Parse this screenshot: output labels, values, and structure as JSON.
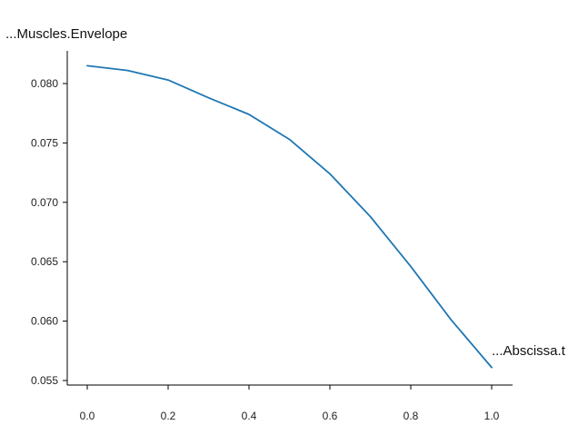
{
  "chart_data": {
    "type": "line",
    "title": "",
    "xlabel": "...Abscissa.t",
    "ylabel": "...Muscles.Envelope",
    "xlim": [
      0.0,
      1.0
    ],
    "ylim": [
      0.0555,
      0.0828
    ],
    "x_ticks": [
      "0.0",
      "0.2",
      "0.4",
      "0.6",
      "0.8",
      "1.0"
    ],
    "y_ticks": [
      "0.055",
      "0.060",
      "0.065",
      "0.070",
      "0.075",
      "0.080"
    ],
    "grid": false,
    "series": [
      {
        "name": "Muscles.Envelope",
        "color": "#1f77b4",
        "x": [
          0.0,
          0.1,
          0.2,
          0.3,
          0.4,
          0.5,
          0.6,
          0.7,
          0.8,
          0.9,
          1.0
        ],
        "y": [
          0.0815,
          0.0811,
          0.0803,
          0.0788,
          0.0774,
          0.0753,
          0.0724,
          0.0688,
          0.0646,
          0.0601,
          0.0561
        ]
      }
    ]
  }
}
